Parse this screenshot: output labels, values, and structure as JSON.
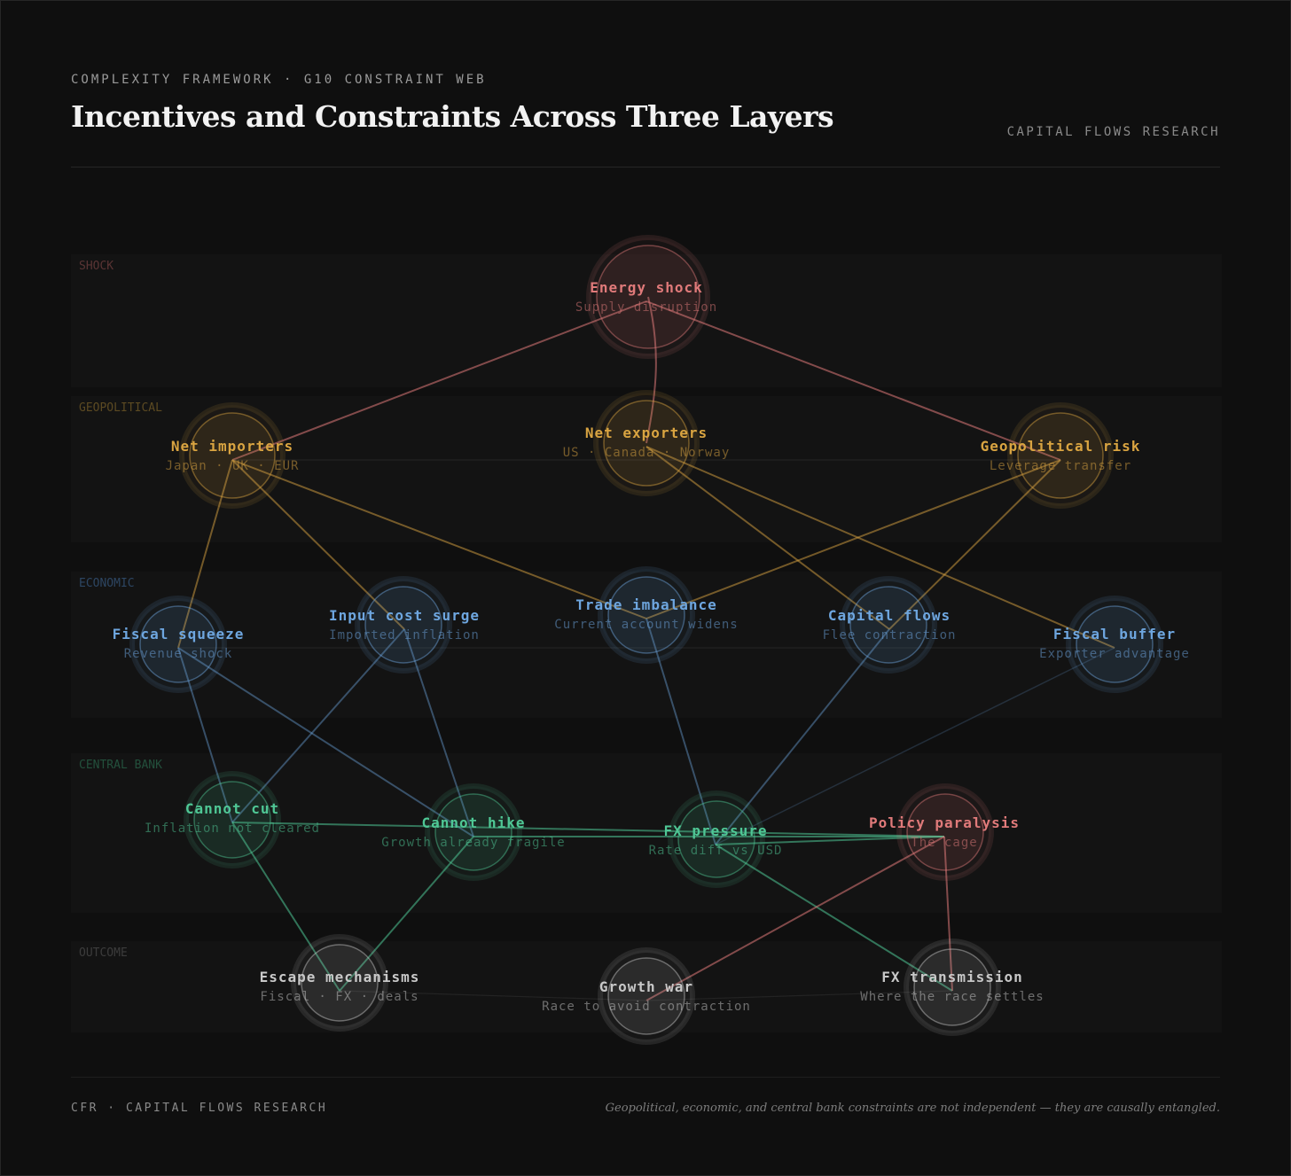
{
  "header": {
    "eyebrow": "COMPLEXITY FRAMEWORK · G10 CONSTRAINT WEB",
    "title": "Incentives and Constraints Across Three Layers",
    "brand": "CAPITAL FLOWS RESEARCH"
  },
  "footer": {
    "left": "CFR · CAPITAL FLOWS RESEARCH",
    "right": "Geopolitical, economic, and central bank constraints are not independent — they are causally entangled."
  },
  "colors": {
    "background": "#0f0f0f",
    "shock": "#e07a7a",
    "geopolitical": "#d9a441",
    "economic": "#6ea6df",
    "central_bank": "#4fc795",
    "outcome": "#c8c8c8"
  },
  "bands": [
    {
      "id": "shock",
      "label": "SHOCK"
    },
    {
      "id": "geopolitical",
      "label": "GEOPOLITICAL"
    },
    {
      "id": "economic",
      "label": "ECONOMIC"
    },
    {
      "id": "central_bank",
      "label": "CENTRAL BANK"
    },
    {
      "id": "outcome",
      "label": "OUTCOME"
    }
  ],
  "nodes": [
    {
      "id": "energy_shock",
      "title": "Energy shock",
      "subtitle": "Supply disruption",
      "kind": "shock"
    },
    {
      "id": "net_importers",
      "title": "Net importers",
      "subtitle": "Japan · UK · EUR",
      "kind": "geopolitical"
    },
    {
      "id": "net_exporters",
      "title": "Net exporters",
      "subtitle": "US · Canada · Norway",
      "kind": "geopolitical"
    },
    {
      "id": "geopolitical_risk",
      "title": "Geopolitical risk",
      "subtitle": "Leverage transfer",
      "kind": "geopolitical"
    },
    {
      "id": "fiscal_squeeze",
      "title": "Fiscal squeeze",
      "subtitle": "Revenue shock",
      "kind": "economic"
    },
    {
      "id": "input_cost_surge",
      "title": "Input cost surge",
      "subtitle": "Imported inflation",
      "kind": "economic"
    },
    {
      "id": "trade_imbalance",
      "title": "Trade imbalance",
      "subtitle": "Current account widens",
      "kind": "economic"
    },
    {
      "id": "capital_flows",
      "title": "Capital flows",
      "subtitle": "Flee contraction",
      "kind": "economic"
    },
    {
      "id": "fiscal_buffer",
      "title": "Fiscal buffer",
      "subtitle": "Exporter advantage",
      "kind": "economic"
    },
    {
      "id": "cannot_cut",
      "title": "Cannot cut",
      "subtitle": "Inflation not cleared",
      "kind": "central_bank"
    },
    {
      "id": "cannot_hike",
      "title": "Cannot hike",
      "subtitle": "Growth already fragile",
      "kind": "central_bank"
    },
    {
      "id": "fx_pressure",
      "title": "FX pressure",
      "subtitle": "Rate diff vs USD",
      "kind": "central_bank"
    },
    {
      "id": "policy_paralysis",
      "title": "Policy paralysis",
      "subtitle": "The cage",
      "kind": "shock"
    },
    {
      "id": "escape_mechanisms",
      "title": "Escape mechanisms",
      "subtitle": "Fiscal · FX · deals",
      "kind": "outcome"
    },
    {
      "id": "growth_war",
      "title": "Growth war",
      "subtitle": "Race to avoid contraction",
      "kind": "outcome"
    },
    {
      "id": "fx_transmission",
      "title": "FX transmission",
      "subtitle": "Where the race settles",
      "kind": "outcome"
    }
  ],
  "edges": [
    {
      "from": "energy_shock",
      "to": "net_importers",
      "kind": "shock"
    },
    {
      "from": "energy_shock",
      "to": "net_exporters",
      "kind": "shock"
    },
    {
      "from": "energy_shock",
      "to": "geopolitical_risk",
      "kind": "shock"
    },
    {
      "from": "net_importers",
      "to": "fiscal_squeeze",
      "kind": "geopolitical"
    },
    {
      "from": "net_importers",
      "to": "input_cost_surge",
      "kind": "geopolitical"
    },
    {
      "from": "net_importers",
      "to": "trade_imbalance",
      "kind": "geopolitical"
    },
    {
      "from": "net_exporters",
      "to": "capital_flows",
      "kind": "geopolitical"
    },
    {
      "from": "net_exporters",
      "to": "fiscal_buffer",
      "kind": "geopolitical"
    },
    {
      "from": "geopolitical_risk",
      "to": "trade_imbalance",
      "kind": "geopolitical"
    },
    {
      "from": "geopolitical_risk",
      "to": "capital_flows",
      "kind": "geopolitical"
    },
    {
      "from": "fiscal_squeeze",
      "to": "cannot_cut",
      "kind": "economic"
    },
    {
      "from": "fiscal_squeeze",
      "to": "cannot_hike",
      "kind": "economic"
    },
    {
      "from": "input_cost_surge",
      "to": "cannot_cut",
      "kind": "economic"
    },
    {
      "from": "input_cost_surge",
      "to": "cannot_hike",
      "kind": "economic"
    },
    {
      "from": "trade_imbalance",
      "to": "fx_pressure",
      "kind": "economic"
    },
    {
      "from": "capital_flows",
      "to": "fx_pressure",
      "kind": "economic"
    },
    {
      "from": "fiscal_buffer",
      "to": "fx_pressure",
      "kind": "economic_faint"
    },
    {
      "from": "cannot_cut",
      "to": "policy_paralysis",
      "kind": "central_bank"
    },
    {
      "from": "cannot_hike",
      "to": "policy_paralysis",
      "kind": "central_bank"
    },
    {
      "from": "fx_pressure",
      "to": "policy_paralysis",
      "kind": "central_bank"
    },
    {
      "from": "cannot_cut",
      "to": "escape_mechanisms",
      "kind": "central_bank"
    },
    {
      "from": "cannot_hike",
      "to": "escape_mechanisms",
      "kind": "central_bank"
    },
    {
      "from": "fx_pressure",
      "to": "fx_transmission",
      "kind": "central_bank"
    },
    {
      "from": "policy_paralysis",
      "to": "growth_war",
      "kind": "shock"
    },
    {
      "from": "policy_paralysis",
      "to": "fx_transmission",
      "kind": "shock"
    },
    {
      "from": "net_importers",
      "to": "geopolitical_risk",
      "kind": "faint"
    },
    {
      "from": "fiscal_squeeze",
      "to": "fiscal_buffer",
      "kind": "faint"
    },
    {
      "from": "escape_mechanisms",
      "to": "growth_war",
      "kind": "faint"
    },
    {
      "from": "growth_war",
      "to": "fx_transmission",
      "kind": "faint"
    }
  ]
}
